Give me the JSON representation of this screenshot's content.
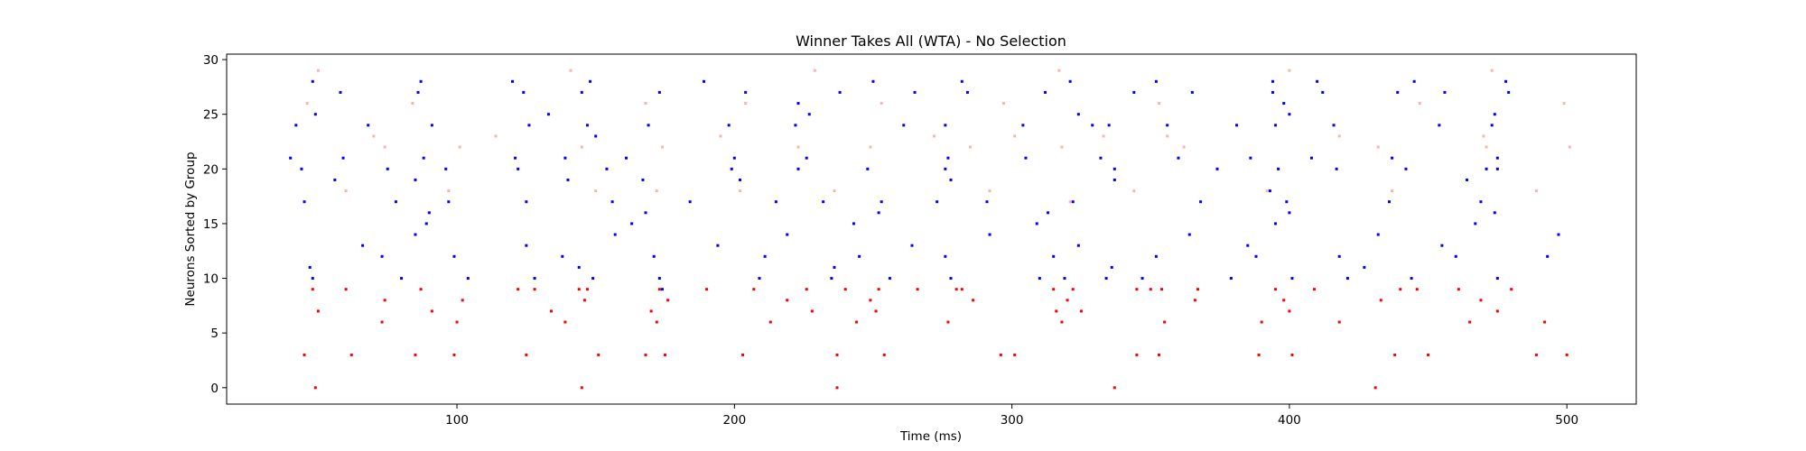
{
  "chart_data": {
    "type": "scatter",
    "title": "Winner Takes All (WTA) - No Selection",
    "xlabel": "Time (ms)",
    "ylabel": "Neurons Sorted by Group",
    "xlim": [
      17,
      525
    ],
    "ylim": [
      -1.5,
      30.5
    ],
    "xticks": [
      100,
      200,
      300,
      400,
      500
    ],
    "yticks": [
      0,
      5,
      10,
      15,
      20,
      25,
      30
    ],
    "grid": false,
    "legend": "none",
    "series": [
      {
        "color": "#ff0000",
        "points": [
          [
            45,
            3
          ],
          [
            48,
            9
          ],
          [
            49,
            0
          ],
          [
            50,
            7
          ],
          [
            60,
            9
          ],
          [
            62,
            3
          ],
          [
            73,
            6
          ],
          [
            74,
            8
          ],
          [
            85,
            3
          ],
          [
            87,
            9
          ],
          [
            91,
            7
          ],
          [
            99,
            3
          ],
          [
            100,
            6
          ],
          [
            102,
            8
          ],
          [
            122,
            9
          ],
          [
            125,
            3
          ],
          [
            128,
            9
          ],
          [
            134,
            7
          ],
          [
            139,
            6
          ],
          [
            144,
            9
          ],
          [
            145,
            0
          ],
          [
            146,
            8
          ],
          [
            147,
            9
          ],
          [
            151,
            3
          ],
          [
            168,
            3
          ],
          [
            170,
            7
          ],
          [
            172,
            6
          ],
          [
            173,
            9
          ],
          [
            175,
            3
          ],
          [
            176,
            8
          ],
          [
            190,
            9
          ],
          [
            203,
            3
          ],
          [
            207,
            9
          ],
          [
            213,
            6
          ],
          [
            219,
            8
          ],
          [
            226,
            9
          ],
          [
            228,
            7
          ],
          [
            237,
            3
          ],
          [
            237,
            0
          ],
          [
            240,
            9
          ],
          [
            244,
            6
          ],
          [
            249,
            8
          ],
          [
            251,
            7
          ],
          [
            252,
            9
          ],
          [
            254,
            3
          ],
          [
            266,
            9
          ],
          [
            277,
            6
          ],
          [
            280,
            9
          ],
          [
            282,
            9
          ],
          [
            286,
            8
          ],
          [
            296,
            3
          ],
          [
            301,
            3
          ],
          [
            315,
            9
          ],
          [
            316,
            7
          ],
          [
            318,
            6
          ],
          [
            320,
            8
          ],
          [
            322,
            9
          ],
          [
            325,
            7
          ],
          [
            337,
            0
          ],
          [
            345,
            3
          ],
          [
            345,
            9
          ],
          [
            350,
            9
          ],
          [
            353,
            3
          ],
          [
            354,
            9
          ],
          [
            355,
            6
          ],
          [
            366,
            8
          ],
          [
            367,
            9
          ],
          [
            389,
            3
          ],
          [
            390,
            6
          ],
          [
            395,
            9
          ],
          [
            398,
            8
          ],
          [
            400,
            7
          ],
          [
            401,
            3
          ],
          [
            409,
            9
          ],
          [
            418,
            6
          ],
          [
            431,
            0
          ],
          [
            433,
            8
          ],
          [
            438,
            3
          ],
          [
            440,
            9
          ],
          [
            446,
            9
          ],
          [
            450,
            3
          ],
          [
            461,
            9
          ],
          [
            465,
            6
          ],
          [
            469,
            8
          ],
          [
            475,
            7
          ],
          [
            480,
            9
          ],
          [
            489,
            3
          ],
          [
            492,
            6
          ],
          [
            500,
            3
          ]
        ]
      },
      {
        "color": "#0000ff",
        "points": [
          [
            40,
            21
          ],
          [
            42,
            24
          ],
          [
            44,
            20
          ],
          [
            45,
            17
          ],
          [
            47,
            11
          ],
          [
            48,
            28
          ],
          [
            48,
            10
          ],
          [
            49,
            25
          ],
          [
            56,
            19
          ],
          [
            58,
            27
          ],
          [
            59,
            21
          ],
          [
            66,
            13
          ],
          [
            68,
            24
          ],
          [
            73,
            12
          ],
          [
            75,
            20
          ],
          [
            78,
            17
          ],
          [
            80,
            10
          ],
          [
            85,
            14
          ],
          [
            85,
            19
          ],
          [
            86,
            27
          ],
          [
            87,
            28
          ],
          [
            88,
            21
          ],
          [
            89,
            15
          ],
          [
            90,
            16
          ],
          [
            91,
            24
          ],
          [
            96,
            20
          ],
          [
            97,
            17
          ],
          [
            99,
            12
          ],
          [
            104,
            10
          ],
          [
            120,
            28
          ],
          [
            121,
            21
          ],
          [
            122,
            20
          ],
          [
            124,
            27
          ],
          [
            125,
            17
          ],
          [
            125,
            13
          ],
          [
            126,
            24
          ],
          [
            128,
            10
          ],
          [
            133,
            25
          ],
          [
            138,
            12
          ],
          [
            139,
            21
          ],
          [
            140,
            19
          ],
          [
            144,
            11
          ],
          [
            145,
            27
          ],
          [
            147,
            24
          ],
          [
            148,
            28
          ],
          [
            149,
            10
          ],
          [
            150,
            23
          ],
          [
            154,
            20
          ],
          [
            156,
            17
          ],
          [
            157,
            14
          ],
          [
            161,
            21
          ],
          [
            163,
            15
          ],
          [
            167,
            19
          ],
          [
            168,
            16
          ],
          [
            169,
            24
          ],
          [
            171,
            12
          ],
          [
            173,
            27
          ],
          [
            173,
            10
          ],
          [
            174,
            9
          ],
          [
            184,
            17
          ],
          [
            189,
            28
          ],
          [
            194,
            13
          ],
          [
            198,
            24
          ],
          [
            199,
            20
          ],
          [
            200,
            21
          ],
          [
            202,
            19
          ],
          [
            204,
            27
          ],
          [
            209,
            10
          ],
          [
            211,
            12
          ],
          [
            215,
            17
          ],
          [
            219,
            14
          ],
          [
            222,
            24
          ],
          [
            223,
            20
          ],
          [
            223,
            26
          ],
          [
            226,
            21
          ],
          [
            227,
            25
          ],
          [
            232,
            17
          ],
          [
            235,
            10
          ],
          [
            236,
            11
          ],
          [
            238,
            27
          ],
          [
            243,
            15
          ],
          [
            245,
            12
          ],
          [
            248,
            20
          ],
          [
            250,
            28
          ],
          [
            252,
            16
          ],
          [
            253,
            17
          ],
          [
            256,
            10
          ],
          [
            261,
            24
          ],
          [
            264,
            13
          ],
          [
            265,
            27
          ],
          [
            273,
            17
          ],
          [
            276,
            12
          ],
          [
            276,
            20
          ],
          [
            276,
            24
          ],
          [
            277,
            21
          ],
          [
            278,
            19
          ],
          [
            278,
            10
          ],
          [
            282,
            28
          ],
          [
            284,
            27
          ],
          [
            291,
            17
          ],
          [
            292,
            14
          ],
          [
            304,
            24
          ],
          [
            305,
            21
          ],
          [
            309,
            15
          ],
          [
            310,
            10
          ],
          [
            312,
            27
          ],
          [
            313,
            16
          ],
          [
            315,
            12
          ],
          [
            319,
            10
          ],
          [
            321,
            28
          ],
          [
            322,
            17
          ],
          [
            324,
            13
          ],
          [
            324,
            25
          ],
          [
            329,
            24
          ],
          [
            332,
            21
          ],
          [
            334,
            10
          ],
          [
            335,
            24
          ],
          [
            336,
            11
          ],
          [
            337,
            20
          ],
          [
            337,
            19
          ],
          [
            344,
            27
          ],
          [
            347,
            10
          ],
          [
            352,
            28
          ],
          [
            352,
            12
          ],
          [
            356,
            24
          ],
          [
            360,
            21
          ],
          [
            364,
            14
          ],
          [
            365,
            27
          ],
          [
            368,
            17
          ],
          [
            374,
            20
          ],
          [
            379,
            10
          ],
          [
            381,
            24
          ],
          [
            385,
            13
          ],
          [
            386,
            21
          ],
          [
            388,
            12
          ],
          [
            393,
            18
          ],
          [
            394,
            27
          ],
          [
            394,
            28
          ],
          [
            395,
            15
          ],
          [
            395,
            24
          ],
          [
            396,
            20
          ],
          [
            398,
            26
          ],
          [
            399,
            17
          ],
          [
            400,
            16
          ],
          [
            400,
            25
          ],
          [
            401,
            10
          ],
          [
            408,
            21
          ],
          [
            410,
            28
          ],
          [
            412,
            27
          ],
          [
            416,
            24
          ],
          [
            417,
            20
          ],
          [
            418,
            12
          ],
          [
            421,
            10
          ],
          [
            427,
            11
          ],
          [
            432,
            14
          ],
          [
            436,
            17
          ],
          [
            437,
            21
          ],
          [
            439,
            27
          ],
          [
            442,
            20
          ],
          [
            444,
            10
          ],
          [
            445,
            28
          ],
          [
            454,
            24
          ],
          [
            455,
            13
          ],
          [
            456,
            27
          ],
          [
            460,
            12
          ],
          [
            464,
            19
          ],
          [
            467,
            15
          ],
          [
            469,
            17
          ],
          [
            471,
            20
          ],
          [
            473,
            24
          ],
          [
            474,
            16
          ],
          [
            474,
            25
          ],
          [
            475,
            20
          ],
          [
            475,
            21
          ],
          [
            475,
            10
          ],
          [
            478,
            28
          ],
          [
            479,
            27
          ],
          [
            493,
            12
          ],
          [
            497,
            14
          ]
        ]
      },
      {
        "color": "#ffb0b0",
        "points": [
          [
            46,
            26
          ],
          [
            50,
            29
          ],
          [
            60,
            18
          ],
          [
            70,
            23
          ],
          [
            74,
            22
          ],
          [
            84,
            26
          ],
          [
            97,
            18
          ],
          [
            101,
            22
          ],
          [
            114,
            23
          ],
          [
            141,
            29
          ],
          [
            145,
            22
          ],
          [
            150,
            18
          ],
          [
            168,
            26
          ],
          [
            172,
            18
          ],
          [
            174,
            22
          ],
          [
            195,
            23
          ],
          [
            202,
            18
          ],
          [
            204,
            26
          ],
          [
            223,
            22
          ],
          [
            229,
            29
          ],
          [
            236,
            18
          ],
          [
            249,
            22
          ],
          [
            253,
            26
          ],
          [
            272,
            23
          ],
          [
            285,
            22
          ],
          [
            292,
            18
          ],
          [
            297,
            26
          ],
          [
            301,
            23
          ],
          [
            317,
            29
          ],
          [
            318,
            22
          ],
          [
            321,
            17
          ],
          [
            333,
            23
          ],
          [
            344,
            18
          ],
          [
            353,
            26
          ],
          [
            356,
            23
          ],
          [
            362,
            22
          ],
          [
            392,
            18
          ],
          [
            400,
            29
          ],
          [
            418,
            23
          ],
          [
            432,
            22
          ],
          [
            437,
            18
          ],
          [
            447,
            26
          ],
          [
            470,
            23
          ],
          [
            471,
            22
          ],
          [
            473,
            29
          ],
          [
            489,
            18
          ],
          [
            499,
            26
          ],
          [
            501,
            22
          ]
        ]
      }
    ]
  }
}
